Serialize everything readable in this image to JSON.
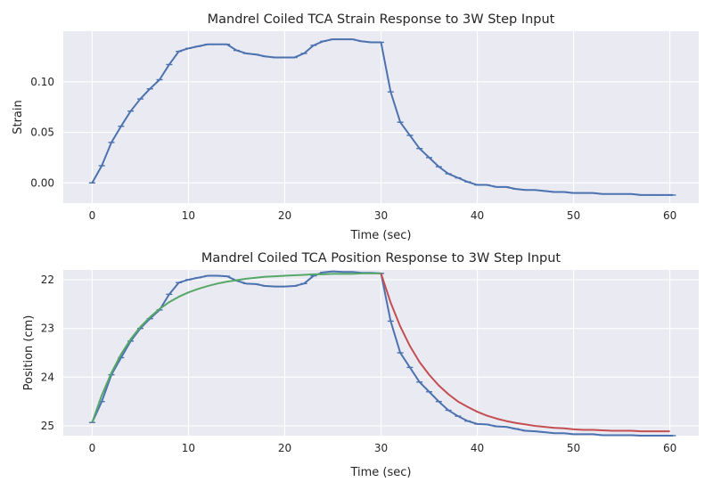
{
  "chart_data": [
    {
      "type": "line",
      "title": "Mandrel Coiled TCA Strain Response to 3W Step Input",
      "xlabel": "Time (sec)",
      "ylabel": "Strain",
      "xlim": [
        -3,
        63
      ],
      "ylim": [
        -0.02,
        0.15
      ],
      "inverted_y": false,
      "xticks": [
        0,
        10,
        20,
        30,
        40,
        50,
        60
      ],
      "yticks": [
        0.0,
        0.05,
        0.1
      ],
      "ytick_labels": [
        "0.00",
        "0.05",
        "0.10"
      ],
      "grid": true,
      "series": [
        {
          "name": "",
          "color": "#4c72b0",
          "markers": true,
          "x": [
            0,
            1,
            2,
            3,
            4,
            5,
            6,
            7,
            8,
            9,
            10,
            11,
            12,
            13,
            14,
            15,
            16,
            17,
            18,
            19,
            20,
            21,
            22,
            23,
            24,
            25,
            26,
            27,
            28,
            29,
            30,
            31,
            32,
            33,
            34,
            35,
            36,
            37,
            38,
            39,
            40,
            41,
            42,
            43,
            44,
            45,
            46,
            47,
            48,
            49,
            50,
            51,
            52,
            53,
            54,
            55,
            56,
            57,
            58,
            59,
            60,
            60.3
          ],
          "y": [
            0.0,
            0.017,
            0.04,
            0.056,
            0.071,
            0.083,
            0.093,
            0.102,
            0.117,
            0.13,
            0.133,
            0.135,
            0.137,
            0.137,
            0.137,
            0.131,
            0.128,
            0.127,
            0.125,
            0.124,
            0.124,
            0.124,
            0.128,
            0.136,
            0.14,
            0.142,
            0.142,
            0.142,
            0.14,
            0.139,
            0.139,
            0.09,
            0.06,
            0.047,
            0.034,
            0.025,
            0.016,
            0.009,
            0.005,
            0.001,
            -0.002,
            -0.002,
            -0.004,
            -0.004,
            -0.006,
            -0.007,
            -0.007,
            -0.008,
            -0.009,
            -0.009,
            -0.01,
            -0.01,
            -0.01,
            -0.011,
            -0.011,
            -0.011,
            -0.011,
            -0.012,
            -0.012,
            -0.012,
            -0.012,
            -0.012
          ]
        }
      ]
    },
    {
      "type": "line",
      "title": "Mandrel Coiled TCA Position Response to 3W Step Input",
      "xlabel": "Time (sec)",
      "ylabel": "Position (cm)",
      "xlim": [
        -3,
        63
      ],
      "ylim": [
        25.2,
        21.8
      ],
      "inverted_y": true,
      "xticks": [
        0,
        10,
        20,
        30,
        40,
        50,
        60
      ],
      "yticks": [
        22,
        23,
        24,
        25
      ],
      "ytick_labels": [
        "22",
        "23",
        "24",
        "25"
      ],
      "grid": true,
      "series": [
        {
          "name": "",
          "color": "#4c72b0",
          "markers": true,
          "x": [
            0,
            1,
            2,
            3,
            4,
            5,
            6,
            7,
            8,
            9,
            10,
            11,
            12,
            13,
            14,
            15,
            16,
            17,
            18,
            19,
            20,
            21,
            22,
            23,
            24,
            25,
            26,
            27,
            28,
            29,
            30,
            31,
            32,
            33,
            34,
            35,
            36,
            37,
            38,
            39,
            40,
            41,
            42,
            43,
            44,
            45,
            46,
            47,
            48,
            49,
            50,
            51,
            52,
            53,
            54,
            55,
            56,
            57,
            58,
            59,
            60,
            60.3
          ],
          "y": [
            24.93,
            24.5,
            23.95,
            23.6,
            23.26,
            23.0,
            22.8,
            22.62,
            22.3,
            22.06,
            22.0,
            21.96,
            21.92,
            21.92,
            21.93,
            22.02,
            22.08,
            22.09,
            22.13,
            22.14,
            22.14,
            22.13,
            22.08,
            21.92,
            21.85,
            21.83,
            21.84,
            21.84,
            21.86,
            21.86,
            21.87,
            22.85,
            23.5,
            23.8,
            24.1,
            24.3,
            24.5,
            24.68,
            24.8,
            24.9,
            24.96,
            24.97,
            25.01,
            25.02,
            25.06,
            25.1,
            25.11,
            25.13,
            25.15,
            25.15,
            25.17,
            25.17,
            25.17,
            25.19,
            25.19,
            25.19,
            25.19,
            25.2,
            25.2,
            25.2,
            25.2,
            25.2
          ]
        },
        {
          "name": "",
          "color": "#55a868",
          "markers": false,
          "model": "exponential rise",
          "x": [
            0,
            1,
            2,
            3,
            4,
            5,
            6,
            7,
            8,
            9,
            10,
            11,
            12,
            13,
            14,
            15,
            16,
            17,
            18,
            19,
            20,
            21,
            22,
            23,
            24,
            25,
            26,
            27,
            28,
            29,
            30
          ],
          "y": [
            24.93,
            24.37,
            23.91,
            23.53,
            23.22,
            22.97,
            22.77,
            22.6,
            22.46,
            22.35,
            22.26,
            22.19,
            22.13,
            22.08,
            22.04,
            22.01,
            21.98,
            21.96,
            21.94,
            21.93,
            21.92,
            21.91,
            21.9,
            21.89,
            21.89,
            21.88,
            21.88,
            21.88,
            21.87,
            21.87,
            21.87
          ]
        },
        {
          "name": "",
          "color": "#c44e52",
          "markers": false,
          "model": "exponential decay",
          "x": [
            30,
            31,
            32,
            33,
            34,
            35,
            36,
            37,
            38,
            39,
            40,
            41,
            42,
            43,
            44,
            45,
            46,
            47,
            48,
            49,
            50,
            51,
            52,
            53,
            54,
            55,
            56,
            57,
            58,
            59,
            60
          ],
          "y": [
            21.87,
            22.47,
            22.96,
            23.36,
            23.69,
            23.95,
            24.17,
            24.35,
            24.5,
            24.61,
            24.71,
            24.79,
            24.85,
            24.9,
            24.94,
            24.97,
            25.0,
            25.02,
            25.04,
            25.05,
            25.07,
            25.08,
            25.08,
            25.09,
            25.1,
            25.1,
            25.1,
            25.11,
            25.11,
            25.11,
            25.11
          ]
        }
      ]
    }
  ]
}
